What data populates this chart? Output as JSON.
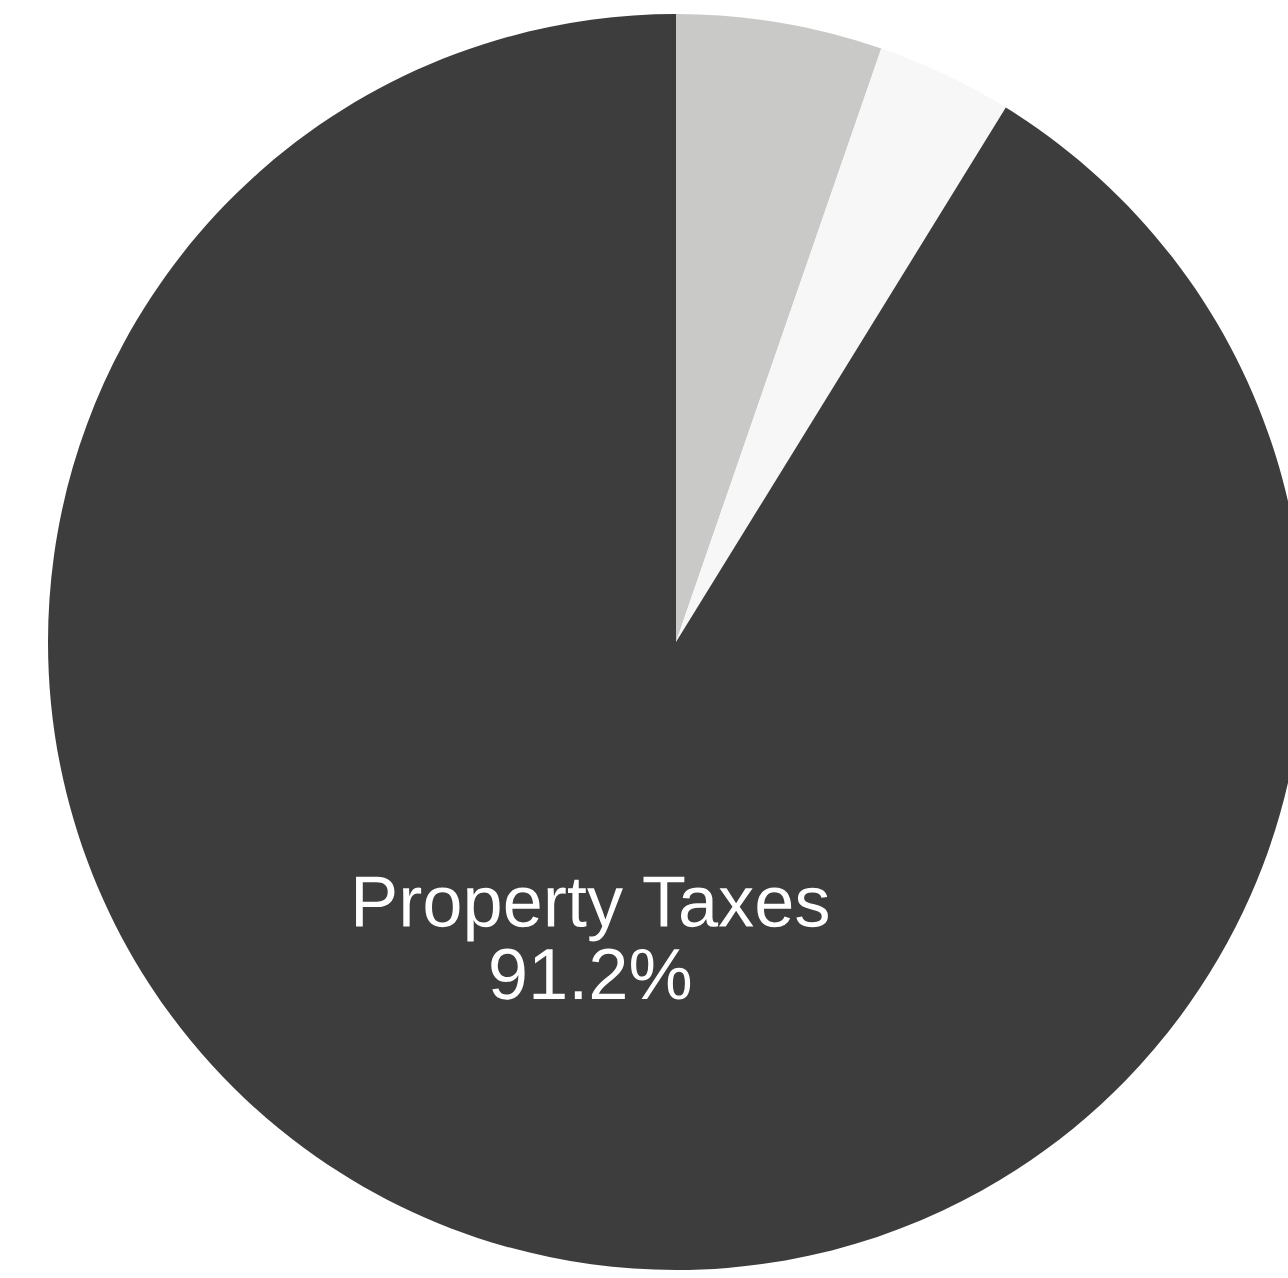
{
  "chart_data": {
    "type": "pie",
    "categories": [
      null,
      null,
      "Property Taxes"
    ],
    "values": [
      5.3,
      3.5,
      91.2
    ],
    "colors": [
      "#c9c9c7",
      "#f7f7f7",
      "#3d3d3d"
    ],
    "value_labels": [
      null,
      null,
      "91.2%"
    ]
  }
}
